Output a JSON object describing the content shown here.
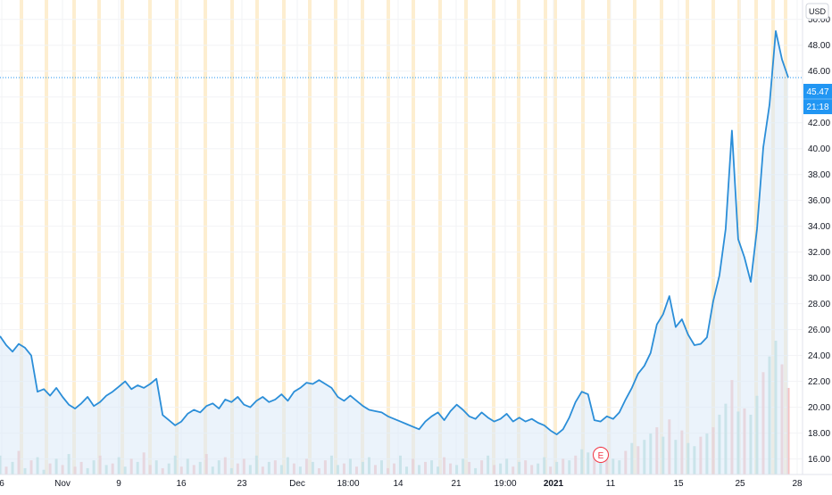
{
  "currency": "USD",
  "last_price": "45.47",
  "countdown": "21:18",
  "earnings_marker": "E",
  "colors": {
    "line": "#2b8ed8",
    "area": "#dbeaf7",
    "price_badge": "#2196f3",
    "vol_up": "#a5d6d0",
    "vol_down": "#f4b3b0",
    "session_band": "#fdebc8",
    "grid": "#f2f3f5",
    "axis_text": "#131722"
  },
  "chart_data": {
    "type": "line",
    "title": "",
    "xlabel": "",
    "ylabel": "",
    "ylim": [
      14.8,
      51.5
    ],
    "grid": true,
    "x_tick_labels": [
      "6",
      "Nov",
      "9",
      "16",
      "23",
      "Dec",
      "18:00",
      "14",
      "21",
      "19:00",
      "2021",
      "11",
      "15",
      "25",
      "28"
    ],
    "y_tick_labels": [
      "16.00",
      "18.00",
      "20.00",
      "22.00",
      "24.00",
      "26.00",
      "28.00",
      "30.00",
      "32.00",
      "34.00",
      "36.00",
      "38.00",
      "40.00",
      "42.00",
      "44.00",
      "46.00",
      "48.00",
      "50.00"
    ],
    "series": [
      {
        "values": [
          25.5,
          24.8,
          24.3,
          24.9,
          24.6,
          24.0,
          21.2,
          21.4,
          20.9,
          21.5,
          20.8,
          20.2,
          19.9,
          20.3,
          20.8,
          20.1,
          20.4,
          20.9,
          21.2,
          21.6,
          22.0,
          21.4,
          21.7,
          21.5,
          21.8,
          22.2,
          19.4,
          19.0,
          18.6,
          18.9,
          19.5,
          19.8,
          19.6,
          20.1,
          20.3,
          19.9,
          20.6,
          20.4,
          20.8,
          20.2,
          20.0,
          20.5,
          20.8,
          20.4,
          20.6,
          21.0,
          20.5,
          21.2,
          21.5,
          21.9,
          21.8,
          22.1,
          21.8,
          21.5,
          20.8,
          20.5,
          20.9,
          20.5,
          20.1,
          19.8,
          19.7,
          19.6,
          19.3,
          19.1,
          18.9,
          18.7,
          18.5,
          18.3,
          18.9,
          19.3,
          19.6,
          19.0,
          19.7,
          20.2,
          19.8,
          19.3,
          19.1,
          19.6,
          19.2,
          18.9,
          19.1,
          19.5,
          18.9,
          19.2,
          18.9,
          19.1,
          18.8,
          18.6,
          18.2,
          17.9,
          18.3,
          19.2,
          20.4,
          21.2,
          21.0,
          19.0,
          18.9,
          19.3,
          19.1,
          19.6,
          20.6,
          21.5,
          22.6,
          23.2,
          24.2,
          26.4,
          27.2,
          28.6,
          26.2,
          26.8,
          25.6,
          24.8,
          24.9,
          25.4,
          28.2,
          30.2,
          33.8,
          41.4,
          33.0,
          31.6,
          29.7,
          33.8,
          40.1,
          43.4,
          49.1,
          46.9,
          45.5
        ]
      }
    ],
    "volume": {
      "values": [
        12,
        5,
        8,
        15,
        4,
        9,
        11,
        3,
        7,
        10,
        6,
        13,
        5,
        8,
        4,
        9,
        12,
        6,
        7,
        11,
        5,
        10,
        8,
        14,
        6,
        9,
        4,
        7,
        12,
        5,
        10,
        6,
        8,
        13,
        5,
        9,
        11,
        4,
        7,
        10,
        6,
        12,
        5,
        8,
        9,
        6,
        11,
        7,
        5,
        10,
        8,
        4,
        9,
        12,
        6,
        7,
        10,
        5,
        8,
        11,
        6,
        9,
        4,
        7,
        12,
        5,
        10,
        6,
        8,
        9,
        5,
        11,
        7,
        6,
        10,
        8,
        4,
        9,
        12,
        6,
        7,
        10,
        5,
        8,
        9,
        6,
        7,
        11,
        5,
        8,
        10,
        9,
        12,
        16,
        14,
        13,
        18,
        12,
        10,
        9,
        15,
        20,
        18,
        22,
        26,
        30,
        24,
        35,
        22,
        28,
        20,
        18,
        24,
        26,
        30,
        38,
        45,
        60,
        40,
        42,
        38,
        50,
        65,
        75,
        85,
        70,
        55
      ],
      "up": [
        true,
        false,
        true,
        false,
        true,
        false,
        true,
        true,
        false,
        true,
        false,
        true,
        false,
        false,
        true,
        true,
        false,
        true,
        false,
        true,
        true,
        false,
        true,
        false,
        false,
        true,
        false,
        true,
        true,
        false,
        true,
        false,
        true,
        false,
        true,
        true,
        false,
        true,
        false,
        false,
        true,
        true,
        false,
        true,
        false,
        true,
        true,
        false,
        true,
        false,
        true,
        false,
        false,
        true,
        true,
        false,
        true,
        false,
        true,
        true,
        false,
        true,
        false,
        false,
        true,
        true,
        false,
        true,
        false,
        true,
        true,
        false,
        false,
        true,
        true,
        false,
        true,
        false,
        true,
        false,
        true,
        true,
        false,
        true,
        false,
        false,
        true,
        true,
        false,
        true,
        false,
        true,
        false,
        true,
        true,
        false,
        true,
        false,
        true,
        true,
        false,
        true,
        false,
        true,
        true,
        false,
        true,
        false,
        true,
        false,
        true,
        true,
        false,
        true,
        false,
        true,
        true,
        false,
        true,
        false,
        true,
        true,
        false,
        true,
        true,
        false,
        false
      ]
    }
  }
}
